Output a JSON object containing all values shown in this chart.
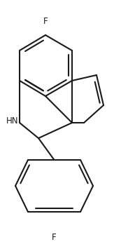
{
  "background_color": "#ffffff",
  "line_color": "#1a1a1a",
  "line_width": 1.5,
  "font_size_labels": 8.5,
  "fig_width": 1.73,
  "fig_height": 3.55,
  "dpi": 100,
  "xlim": [
    0,
    173
  ],
  "ylim": [
    0,
    355
  ]
}
